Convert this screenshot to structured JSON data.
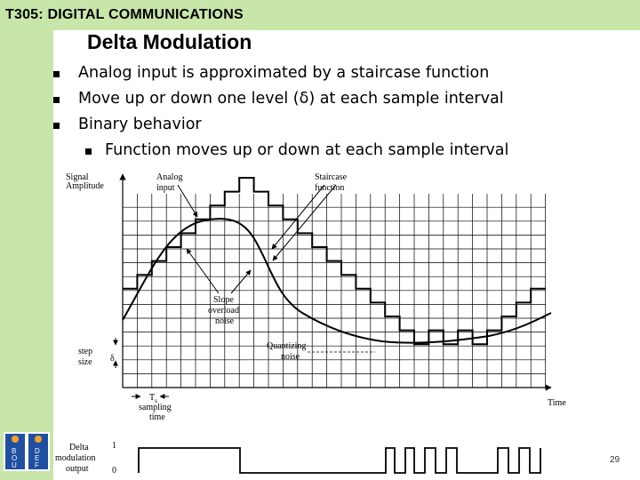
{
  "header": {
    "title": "T305: DIGITAL COMMUNICATIONS"
  },
  "slide": {
    "title": "Delta Modulation",
    "bullets": [
      "Analog input is approximated by a staircase function",
      "Move up or down one level (δ) at each sample interval",
      "Binary behavior"
    ],
    "sub_bullets": [
      "Function moves up or down at each sample interval"
    ]
  },
  "figure": {
    "y_axis_label_line1": "Signal",
    "y_axis_label_line2": "Amplitude",
    "analog_label_line1": "Analog",
    "analog_label_line2": "input",
    "staircase_label_line1": "Staircase",
    "staircase_label_line2": "function",
    "slope_label_line1": "Slope",
    "slope_label_line2": "overload",
    "slope_label_line3": "noise",
    "quant_label_line1": "Quantizing",
    "quant_label_line2": "noise",
    "step_label_line1": "step",
    "step_label_line2": "size",
    "delta_symbol": "δ",
    "ts_label": "T",
    "ts_sub": "s",
    "sampling_label_line1": "sampling",
    "sampling_label_line2": "time",
    "time_label": "Time",
    "output_label_line1": "Delta",
    "output_label_line2": "modulation",
    "output_label_line3": "output",
    "output_one": "1",
    "output_zero": "0"
  },
  "logo": {
    "letters": [
      "B",
      "O",
      "U",
      "D",
      "E",
      "F"
    ]
  },
  "page_number": "29"
}
